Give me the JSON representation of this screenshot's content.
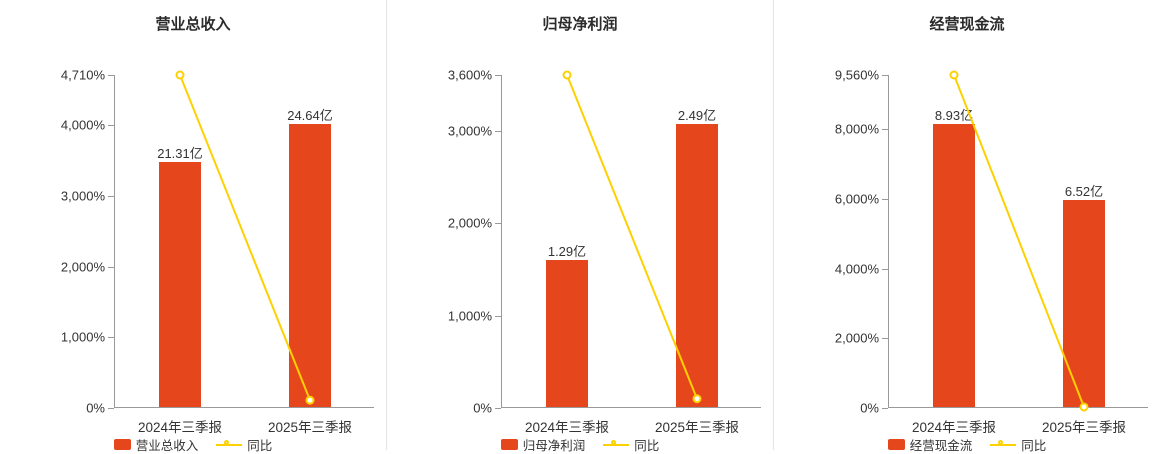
{
  "page": {
    "background": "#ffffff"
  },
  "colors": {
    "bar": "#e5461c",
    "line": "#fdd100",
    "axis": "#999999",
    "text": "#333333",
    "divider": "#e5e5e5",
    "marker_fill": "#ffffff"
  },
  "chart_data": [
    {
      "type": "bar+line",
      "title": "营业总收入",
      "categories": [
        "2024年三季报",
        "2025年三季报"
      ],
      "bar_series": {
        "name": "营业总收入",
        "values": [
          21.31,
          24.64
        ],
        "labels": [
          "21.31亿",
          "24.64亿"
        ]
      },
      "line_series": {
        "name": "同比",
        "values_pct": [
          4710,
          110
        ]
      },
      "y_axis": {
        "max": 4710,
        "ticks": [
          0,
          1000,
          2000,
          3000,
          4000,
          4710
        ],
        "tick_labels": [
          "0%",
          "1,000%",
          "2,000%",
          "3,000%",
          "4,000%",
          "4,710%"
        ]
      },
      "legend": [
        "营业总收入",
        "同比"
      ],
      "grid": false,
      "legend_position": "bottom"
    },
    {
      "type": "bar+line",
      "title": "归母净利润",
      "categories": [
        "2024年三季报",
        "2025年三季报"
      ],
      "bar_series": {
        "name": "归母净利润",
        "values": [
          1.29,
          2.49
        ],
        "labels": [
          "1.29亿",
          "2.49亿"
        ]
      },
      "line_series": {
        "name": "同比",
        "values_pct": [
          3600,
          100
        ]
      },
      "y_axis": {
        "max": 3600,
        "ticks": [
          0,
          1000,
          2000,
          3000,
          3600
        ],
        "tick_labels": [
          "0%",
          "1,000%",
          "2,000%",
          "3,000%",
          "3,600%"
        ]
      },
      "legend": [
        "归母净利润",
        "同比"
      ],
      "grid": false,
      "legend_position": "bottom"
    },
    {
      "type": "bar+line",
      "title": "经营现金流",
      "categories": [
        "2024年三季报",
        "2025年三季报"
      ],
      "bar_series": {
        "name": "经营现金流",
        "values": [
          8.93,
          6.52
        ],
        "labels": [
          "8.93亿",
          "6.52亿"
        ]
      },
      "line_series": {
        "name": "同比",
        "values_pct": [
          9560,
          30
        ]
      },
      "y_axis": {
        "max": 9560,
        "ticks": [
          0,
          2000,
          4000,
          6000,
          8000,
          9560
        ],
        "tick_labels": [
          "0%",
          "2,000%",
          "4,000%",
          "6,000%",
          "8,000%",
          "9,560%"
        ]
      },
      "legend": [
        "经营现金流",
        "同比"
      ],
      "grid": false,
      "legend_position": "bottom"
    }
  ]
}
